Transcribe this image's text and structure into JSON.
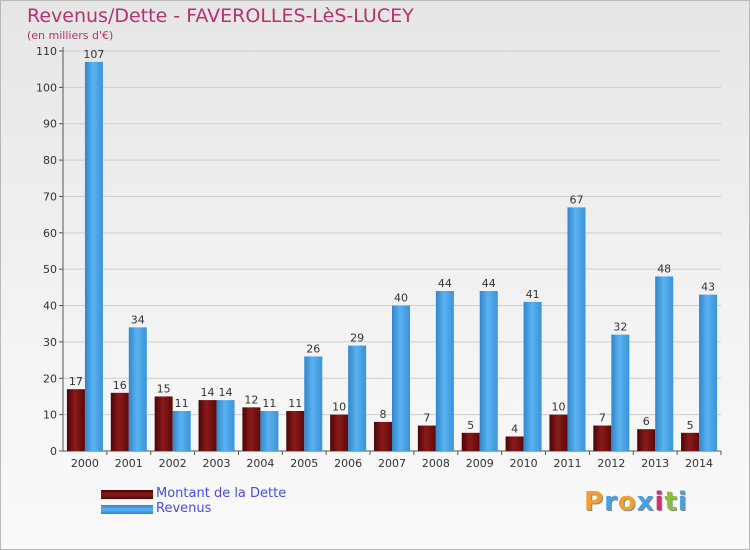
{
  "title": "Revenus/Dette - FAVEROLLES-LèS-LUCEY",
  "subtitle": "(en milliers d'€)",
  "colors": {
    "debt": "#7a1010",
    "revenue": "#4aa3e6",
    "title": "#b8306c",
    "legend_text": "#4a4ae6"
  },
  "legend": {
    "debt_label": "Montant de la Dette",
    "revenue_label": "Revenus"
  },
  "logo": {
    "text": "Proxiti"
  },
  "chart_data": {
    "type": "bar",
    "title": "Revenus/Dette - FAVEROLLES-LèS-LUCEY",
    "ylabel": "(en milliers d'€)",
    "xlabel": "",
    "ylim": [
      0,
      110
    ],
    "yticks": [
      0,
      10,
      20,
      30,
      40,
      50,
      60,
      70,
      80,
      90,
      100,
      110
    ],
    "grid": true,
    "legend_position": "bottom-left",
    "categories": [
      "2000",
      "2001",
      "2002",
      "2003",
      "2004",
      "2005",
      "2006",
      "2007",
      "2008",
      "2009",
      "2010",
      "2011",
      "2012",
      "2013",
      "2014"
    ],
    "series": [
      {
        "name": "Montant de la Dette",
        "values": [
          17,
          16,
          15,
          14,
          12,
          11,
          10,
          8,
          7,
          5,
          4,
          10,
          7,
          6,
          5
        ]
      },
      {
        "name": "Revenus",
        "values": [
          107,
          34,
          11,
          14,
          11,
          26,
          29,
          40,
          44,
          44,
          41,
          67,
          32,
          48,
          43
        ]
      }
    ]
  }
}
